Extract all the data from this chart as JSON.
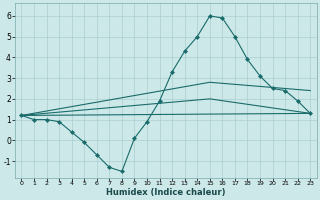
{
  "xlabel": "Humidex (Indice chaleur)",
  "background_color": "#cde8e8",
  "grid_color": "#aacfcf",
  "line_color": "#1a6b6b",
  "xlim": [
    -0.5,
    23.5
  ],
  "ylim": [
    -1.8,
    6.6
  ],
  "xticks": [
    0,
    1,
    2,
    3,
    4,
    5,
    6,
    7,
    8,
    9,
    10,
    11,
    12,
    13,
    14,
    15,
    16,
    17,
    18,
    19,
    20,
    21,
    22,
    23
  ],
  "yticks": [
    -1,
    0,
    1,
    2,
    3,
    4,
    5,
    6
  ],
  "series": [
    {
      "x": [
        0,
        1,
        2,
        3,
        4,
        5,
        6,
        7,
        8,
        9,
        10,
        11,
        12,
        13,
        14,
        15,
        16,
        17,
        18,
        19,
        20,
        21,
        22,
        23
      ],
      "y": [
        1.2,
        1.0,
        1.0,
        0.9,
        0.4,
        -0.1,
        -0.7,
        -1.3,
        -1.5,
        0.1,
        0.9,
        1.9,
        3.3,
        4.3,
        5.0,
        6.0,
        5.9,
        5.0,
        3.9,
        3.1,
        2.5,
        2.4,
        1.9,
        1.3
      ],
      "marker": "D",
      "markersize": 2.0,
      "linewidth": 0.8,
      "has_marker": true
    },
    {
      "x": [
        0,
        23
      ],
      "y": [
        1.2,
        1.3
      ],
      "marker": null,
      "markersize": 0,
      "linewidth": 0.8,
      "has_marker": false
    },
    {
      "x": [
        0,
        15,
        23
      ],
      "y": [
        1.2,
        2.8,
        2.4
      ],
      "marker": null,
      "markersize": 0,
      "linewidth": 0.8,
      "has_marker": false
    },
    {
      "x": [
        0,
        15,
        23
      ],
      "y": [
        1.2,
        2.0,
        1.3
      ],
      "marker": null,
      "markersize": 0,
      "linewidth": 0.8,
      "has_marker": false
    }
  ]
}
